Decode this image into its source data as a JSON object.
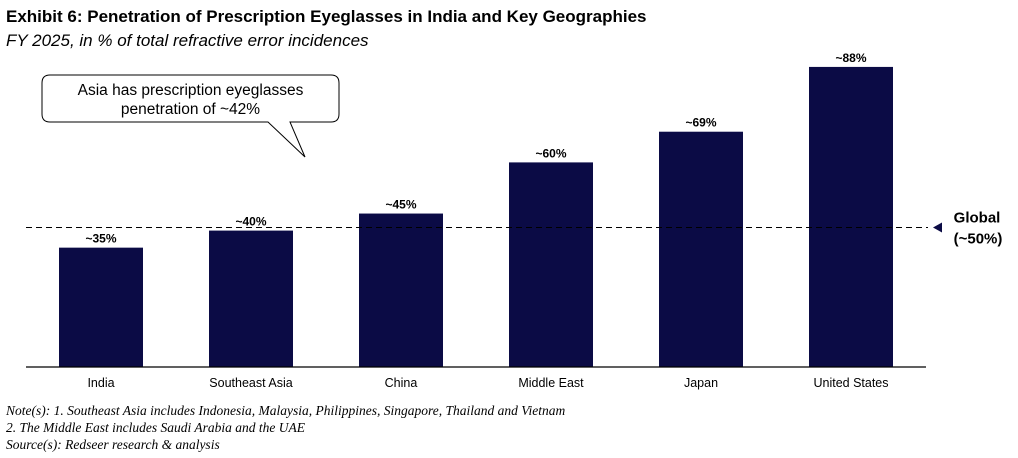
{
  "title": "Exhibit 6: Penetration of Prescription Eyeglasses in India and Key Geographies",
  "subtitle": "FY 2025, in % of total refractive error incidences",
  "callout": {
    "line1": "Asia has prescription eyeglasses",
    "line2": "penetration of ~42%"
  },
  "reference": {
    "label_line1": "Global",
    "label_line2": "(~50%)",
    "value": 50
  },
  "colors": {
    "bar": "#0b0b45",
    "text": "#000000",
    "axis": "#000000"
  },
  "chart_data": {
    "type": "bar",
    "title": "Exhibit 6: Penetration of Prescription Eyeglasses in India and Key Geographies",
    "categories": [
      "India",
      "Southeast Asia",
      "China",
      "Middle East",
      "Japan",
      "United States"
    ],
    "values": [
      35,
      40,
      45,
      60,
      69,
      88
    ],
    "data_labels": [
      "~35%",
      "~40%",
      "~45%",
      "~60%",
      "~69%",
      "~88%"
    ],
    "ylim": [
      0,
      100
    ],
    "grid": false,
    "legend": "none"
  },
  "notes": {
    "note1": "Note(s): 1. Southeast Asia includes Indonesia, Malaysia, Philippines, Singapore, Thailand and Vietnam",
    "note2": "2. The Middle East includes Saudi Arabia and the UAE",
    "source": "Source(s): Redseer research & analysis"
  }
}
